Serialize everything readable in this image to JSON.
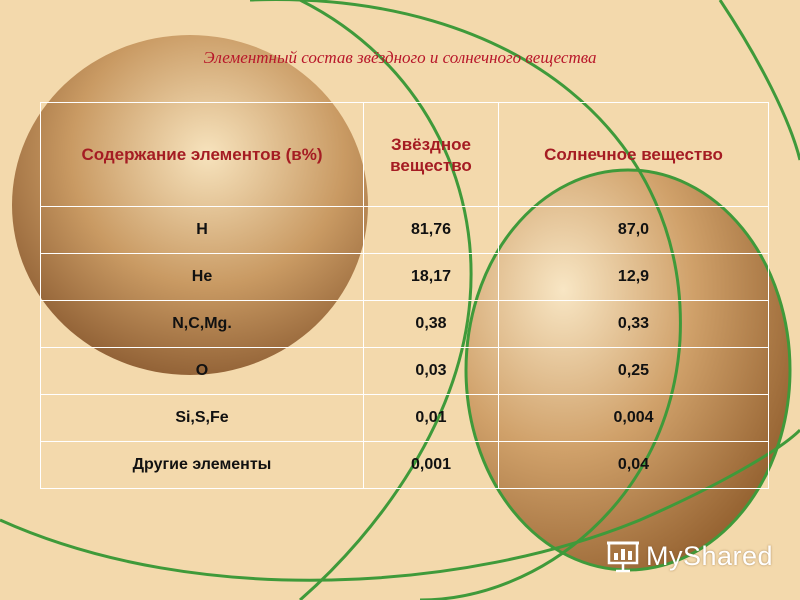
{
  "title": "Элементный состав звёздного и солнечного вещества",
  "table": {
    "headers": [
      "Содержание элементов (в%)",
      "Звёздное вещество",
      "Солнечное вещество"
    ],
    "rows": [
      [
        "H",
        "81,76",
        "87,0"
      ],
      [
        "He",
        "18,17",
        "12,9"
      ],
      [
        "N,C,Mg.",
        "0,38",
        "0,33"
      ],
      [
        "O",
        "0,03",
        "0,25"
      ],
      [
        "Si,S,Fe",
        "0,01",
        "0,004"
      ],
      [
        "Другие элементы",
        "0,001",
        "0,04"
      ]
    ]
  },
  "logo": {
    "text": "MyShared",
    "icon": "presentation-board-icon"
  },
  "colors": {
    "background": "#f3d9ac",
    "title": "#b8172a",
    "line": "#3f9a3a"
  }
}
